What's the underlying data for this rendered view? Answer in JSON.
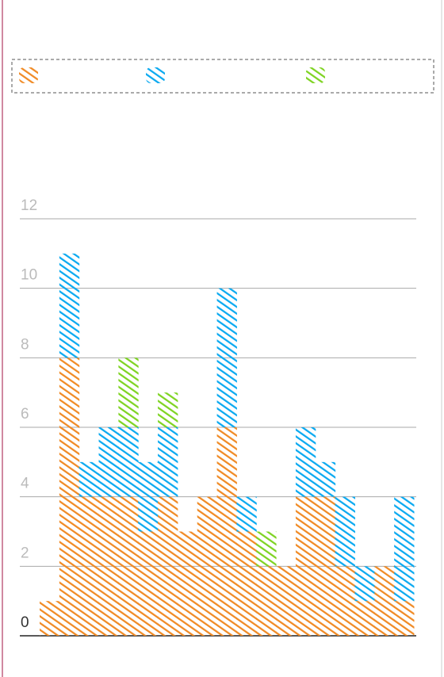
{
  "chart_data": {
    "type": "stacked-step",
    "categories": [
      null,
      null,
      null,
      null,
      null,
      null,
      null,
      null,
      null,
      null,
      null,
      null,
      null,
      null,
      null,
      null,
      null,
      null,
      null
    ],
    "series": [
      {
        "color": "#f08a24",
        "values": [
          1,
          8,
          4,
          4,
          4,
          3,
          4,
          3,
          4,
          6,
          3,
          2,
          2,
          4,
          4,
          2,
          1,
          2,
          1
        ]
      },
      {
        "color": "#0aa9f0",
        "values": [
          0,
          3,
          1,
          2,
          2,
          2,
          2,
          0,
          0,
          4,
          1,
          0,
          0,
          2,
          1,
          2,
          1,
          0,
          3
        ]
      },
      {
        "color": "#7ed321",
        "values": [
          0,
          0,
          0,
          0,
          2,
          0,
          1,
          0,
          0,
          0,
          0,
          1,
          0,
          0,
          0,
          0,
          0,
          0,
          0
        ]
      }
    ],
    "ylim": [
      0,
      12
    ],
    "yticks": [
      0,
      2,
      4,
      6,
      8,
      10,
      12
    ],
    "grid": true
  }
}
